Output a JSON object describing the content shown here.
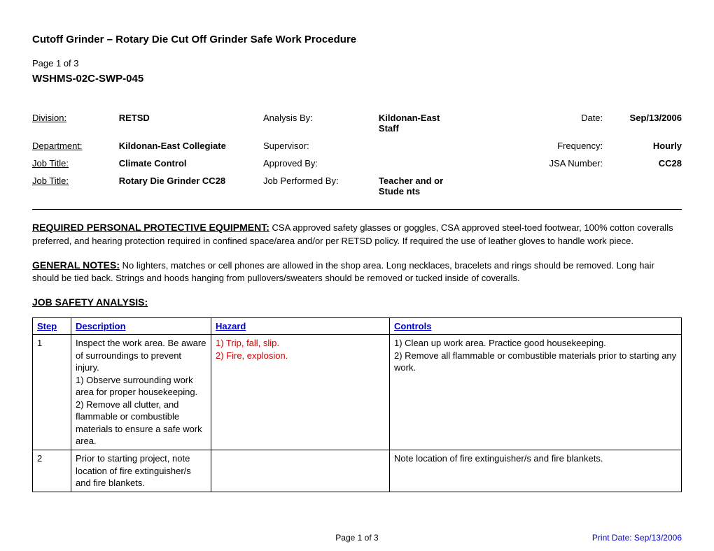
{
  "header": {
    "title": "Cutoff Grinder – Rotary Die Cut Off Grinder Safe Work Procedure",
    "page_label_prefix": "Page ",
    "page_current": "1",
    "page_of": " of ",
    "page_total": "3",
    "doc_code": "WSHMS-02C-SWP-045"
  },
  "meta": {
    "rows": [
      {
        "l1": "Division:",
        "v1": "RETSD",
        "l2": "Analysis By:",
        "v2": "Kildonan-East Staff",
        "l3": "Date:",
        "v3": "Sep/13/2006"
      },
      {
        "l1": "Department:",
        "v1": "Kildonan-East Collegiate",
        "l2": "Supervisor:",
        "v2": "",
        "l3": "Frequency:",
        "v3": "Hourly"
      },
      {
        "l1": "Job Title:",
        "v1": "Climate Control",
        "l2": "Approved By:",
        "v2": "",
        "l3": "JSA Number:",
        "v3": "CC28"
      },
      {
        "l1": "Job Title:",
        "v1": "Rotary Die Grinder CC28",
        "l2": "Job Performed By:",
        "v2": "Teacher and or Stude nts",
        "l3": "",
        "v3": ""
      }
    ]
  },
  "sections": {
    "ppe_heading": "REQUIRED PERSONAL PROTECTIVE EQUIPMENT:",
    "ppe_body": "  CSA approved safety glasses or goggles, CSA approved steel-toed footwear, 100% cotton coveralls preferred, and hearing protection required in confined space/area and/or per RETSD policy. If required the use of leather gloves to handle work piece.",
    "notes_heading": "GENERAL NOTES:",
    "notes_body": "  No lighters, matches or cell phones are allowed in the shop area. Long necklaces, bracelets and rings should be removed. Long hair should be tied back. Strings and hoods hanging from pullovers/sweaters should be removed or tucked inside of coveralls.",
    "jsa_heading": "JOB SAFETY ANALYSIS:"
  },
  "jsa": {
    "columns": {
      "step": "Step",
      "description": "Description",
      "hazard": "Hazard",
      "controls": "Controls"
    },
    "rows": [
      {
        "step": "1",
        "description": "Inspect the work area. Be aware of surroundings to prevent injury.\n1) Observe surrounding work area for proper housekeeping.\n2) Remove all clutter, and flammable or combustible materials to ensure a safe work area.",
        "hazard": "1) Trip, fall, slip.\n2) Fire, explosion.",
        "controls": "1) Clean up work area. Practice good housekeeping.\n2) Remove all flammable or combustible materials prior to starting any work."
      },
      {
        "step": "2",
        "description": "Prior to starting project, note location of fire extinguisher/s and fire blankets.",
        "hazard": "",
        "controls": "Note location of fire extinguisher/s and fire blankets."
      }
    ]
  },
  "footer": {
    "page_text_prefix": "Page ",
    "page_current": "1",
    "page_of": " of ",
    "page_total": "3",
    "print_date": "Print Date: Sep/13/2006"
  },
  "style": {
    "accent_blue": "#0000cc",
    "hazard_red": "#cc0000",
    "background": "#ffffff",
    "border": "#000000"
  }
}
